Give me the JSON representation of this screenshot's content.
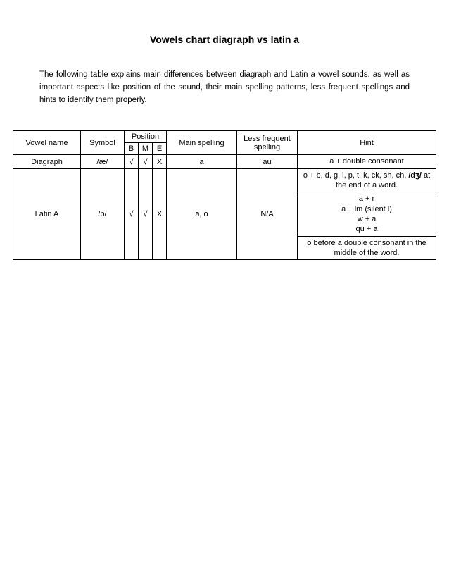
{
  "title": "Vowels chart diagraph vs latin a",
  "intro": "The following table explains main differences between diagraph and Latin a vowel sounds, as well as important aspects like position of the sound, their main spelling patterns, less frequent spellings and hints to identify them properly.",
  "table": {
    "headers": {
      "vowel_name": "Vowel name",
      "symbol": "Symbol",
      "position": "Position",
      "pos_b": "B",
      "pos_m": "M",
      "pos_e": "E",
      "main_spelling": "Main spelling",
      "less_frequent": "Less frequent spelling",
      "hint": "Hint"
    },
    "rows": {
      "diagraph": {
        "name": "Diagraph",
        "symbol": "/æ/",
        "b": "√",
        "m": "√",
        "e": "X",
        "main": "a",
        "less": "au",
        "hint": "a + double consonant"
      },
      "latin_a": {
        "name": "Latin A",
        "symbol": "/ɒ/",
        "b": "√",
        "m": "√",
        "e": "X",
        "main": "a, o",
        "less": "N/A",
        "hint1_pre": "o + b, d, g, l, p, t, k, ck, sh, ch, ",
        "hint1_bold": "/dʒ/",
        "hint1_post": " at the end of a word.",
        "hint2_l1": "a + r",
        "hint2_l2": "a + lm (silent l)",
        "hint2_l3": "w + a",
        "hint2_l4": "qu + a",
        "hint3": "o before a double consonant in the middle of the word."
      }
    }
  },
  "style": {
    "border_color": "#000000",
    "background_color": "#ffffff",
    "text_color": "#000000",
    "title_fontsize": 14,
    "body_fontsize": 11.5,
    "table_fontsize": 11
  }
}
